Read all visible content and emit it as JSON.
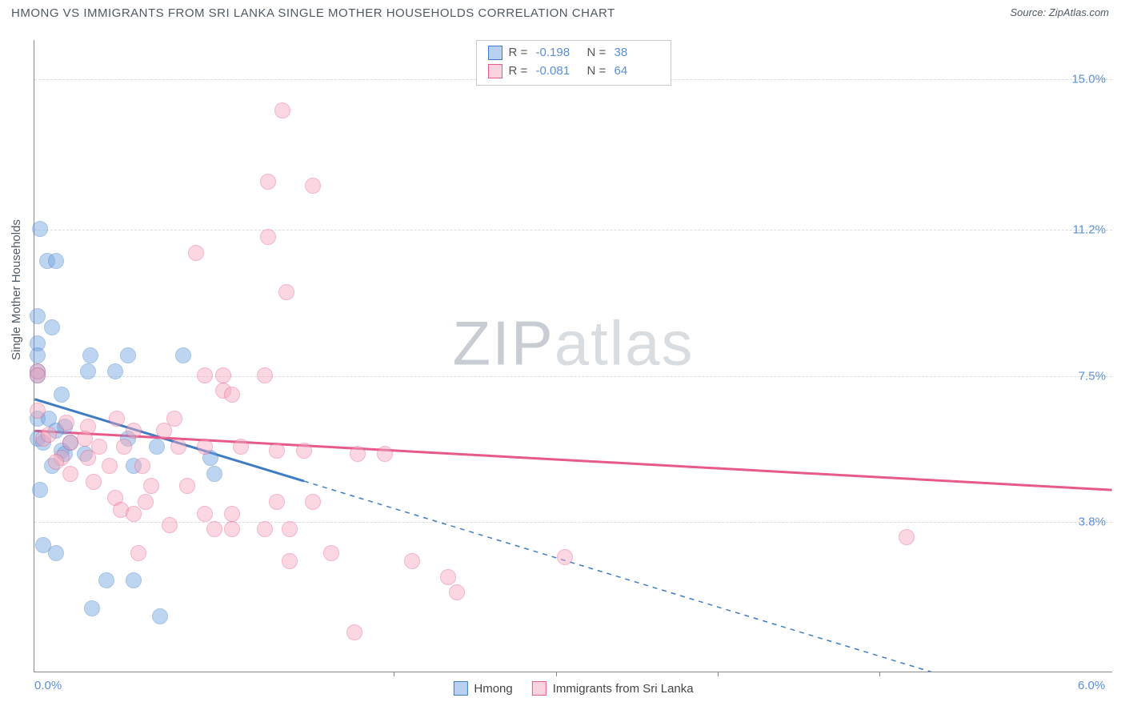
{
  "title": "HMONG VS IMMIGRANTS FROM SRI LANKA SINGLE MOTHER HOUSEHOLDS CORRELATION CHART",
  "source": "Source: ZipAtlas.com",
  "ylabel": "Single Mother Households",
  "watermark_a": "ZIP",
  "watermark_b": "atlas",
  "chart": {
    "type": "scatter",
    "background_color": "#ffffff",
    "grid_color": "#dcdcdc",
    "axis_color": "#888888",
    "label_color": "#5b8fd6",
    "xlim": [
      0.0,
      6.0
    ],
    "ylim": [
      0.0,
      16.0
    ],
    "xticks": [
      0.0,
      6.0
    ],
    "xtick_labels": [
      "0.0%",
      "6.0%"
    ],
    "xtick_minor": [
      2.0,
      2.9,
      3.8,
      4.7
    ],
    "yticks": [
      3.8,
      7.5,
      11.2,
      15.0
    ],
    "ytick_labels": [
      "3.8%",
      "7.5%",
      "11.2%",
      "15.0%"
    ],
    "point_radius": 10,
    "point_opacity": 0.45,
    "series": [
      {
        "name": "Hmong",
        "color": "#6fa3e0",
        "stroke": "#3f7cc4",
        "R": "-0.198",
        "N": "38",
        "trend": {
          "y_at_x0": 6.9,
          "y_at_xmax": -1.4,
          "solid_until_x": 1.5
        },
        "points": [
          [
            0.03,
            11.2
          ],
          [
            0.07,
            10.4
          ],
          [
            0.12,
            10.4
          ],
          [
            0.02,
            9.0
          ],
          [
            0.1,
            8.7
          ],
          [
            0.02,
            8.3
          ],
          [
            0.02,
            8.0
          ],
          [
            0.31,
            8.0
          ],
          [
            0.52,
            8.0
          ],
          [
            0.83,
            8.0
          ],
          [
            0.02,
            7.6
          ],
          [
            0.3,
            7.6
          ],
          [
            0.45,
            7.6
          ],
          [
            0.02,
            7.5
          ],
          [
            0.02,
            6.4
          ],
          [
            0.08,
            6.4
          ],
          [
            0.17,
            6.2
          ],
          [
            0.12,
            6.1
          ],
          [
            0.02,
            5.9
          ],
          [
            0.05,
            5.8
          ],
          [
            0.2,
            5.8
          ],
          [
            0.52,
            5.9
          ],
          [
            0.15,
            5.6
          ],
          [
            0.17,
            5.5
          ],
          [
            0.28,
            5.5
          ],
          [
            0.1,
            5.2
          ],
          [
            0.55,
            5.2
          ],
          [
            0.98,
            5.4
          ],
          [
            1.0,
            5.0
          ],
          [
            0.05,
            3.2
          ],
          [
            0.12,
            3.0
          ],
          [
            0.4,
            2.3
          ],
          [
            0.55,
            2.3
          ],
          [
            0.32,
            1.6
          ],
          [
            0.7,
            1.4
          ],
          [
            0.68,
            5.7
          ],
          [
            0.03,
            4.6
          ],
          [
            0.15,
            7.0
          ]
        ]
      },
      {
        "name": "Immigrants from Sri Lanka",
        "color": "#f4a8bd",
        "stroke": "#e75a8a",
        "R": "-0.081",
        "N": "64",
        "trend": {
          "y_at_x0": 6.1,
          "y_at_xmax": 4.6,
          "solid_until_x": 6.0
        },
        "points": [
          [
            1.38,
            14.2
          ],
          [
            1.3,
            12.4
          ],
          [
            1.55,
            12.3
          ],
          [
            1.3,
            11.0
          ],
          [
            0.9,
            10.6
          ],
          [
            1.4,
            9.6
          ],
          [
            0.02,
            7.6
          ],
          [
            0.02,
            7.5
          ],
          [
            1.05,
            7.5
          ],
          [
            1.28,
            7.5
          ],
          [
            1.05,
            7.1
          ],
          [
            1.1,
            7.0
          ],
          [
            0.02,
            6.6
          ],
          [
            0.78,
            6.4
          ],
          [
            0.3,
            6.2
          ],
          [
            0.55,
            6.1
          ],
          [
            0.72,
            6.1
          ],
          [
            0.05,
            5.9
          ],
          [
            0.2,
            5.8
          ],
          [
            0.36,
            5.7
          ],
          [
            0.5,
            5.7
          ],
          [
            0.8,
            5.7
          ],
          [
            0.95,
            5.7
          ],
          [
            1.15,
            5.7
          ],
          [
            1.35,
            5.6
          ],
          [
            1.5,
            5.6
          ],
          [
            1.8,
            5.5
          ],
          [
            1.95,
            5.5
          ],
          [
            0.15,
            5.4
          ],
          [
            0.3,
            5.4
          ],
          [
            0.12,
            5.3
          ],
          [
            0.42,
            5.2
          ],
          [
            0.6,
            5.2
          ],
          [
            0.2,
            5.0
          ],
          [
            0.65,
            4.7
          ],
          [
            0.85,
            4.7
          ],
          [
            0.45,
            4.4
          ],
          [
            0.48,
            4.1
          ],
          [
            0.62,
            4.3
          ],
          [
            0.75,
            3.7
          ],
          [
            0.55,
            4.0
          ],
          [
            0.95,
            4.0
          ],
          [
            1.0,
            3.6
          ],
          [
            1.1,
            3.6
          ],
          [
            1.28,
            3.6
          ],
          [
            1.42,
            3.6
          ],
          [
            1.1,
            4.0
          ],
          [
            1.35,
            4.3
          ],
          [
            1.55,
            4.3
          ],
          [
            1.42,
            2.8
          ],
          [
            1.65,
            3.0
          ],
          [
            2.1,
            2.8
          ],
          [
            2.3,
            2.4
          ],
          [
            2.35,
            2.0
          ],
          [
            2.95,
            2.9
          ],
          [
            1.78,
            1.0
          ],
          [
            4.85,
            3.4
          ],
          [
            0.28,
            5.9
          ],
          [
            0.08,
            6.0
          ],
          [
            0.95,
            7.5
          ],
          [
            0.46,
            6.4
          ],
          [
            0.33,
            4.8
          ],
          [
            0.58,
            3.0
          ],
          [
            0.18,
            6.3
          ]
        ]
      }
    ]
  },
  "legend_top": {
    "r_label": "R =",
    "n_label": "N ="
  },
  "legend_bottom": [
    "Hmong",
    "Immigrants from Sri Lanka"
  ]
}
